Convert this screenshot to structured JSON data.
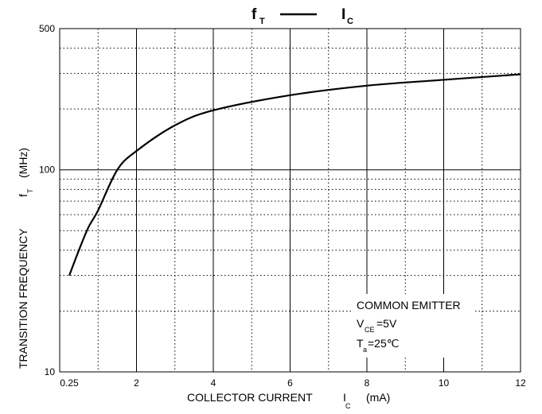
{
  "chart_data": {
    "type": "line",
    "title": {
      "symbol": "f",
      "symbol_sub": "T",
      "vs": "I",
      "vs_sub": "C"
    },
    "x_label": {
      "text": "COLLECTOR CURRENT",
      "symbol": "I",
      "symbol_sub": "C",
      "unit": "(mA)"
    },
    "y_label": {
      "text": "TRANSITION FREQUENCY",
      "symbol": "f",
      "symbol_sub": "T",
      "unit": "(MHz)"
    },
    "annotation": {
      "line1": "COMMON EMITTER",
      "v": "V",
      "v_sub": "CE",
      "v_val": "=5V",
      "t": "T",
      "t_sub": "a",
      "t_val": "=25℃"
    },
    "x": [
      0.25,
      0.5,
      0.75,
      1,
      1.5,
      2,
      3,
      4,
      6,
      8,
      10,
      12
    ],
    "series": [
      {
        "color": "#000000",
        "values": [
          30,
          40,
          52,
          63,
          100,
          124,
          166,
          197,
          234,
          261,
          279,
          297
        ]
      }
    ],
    "xlim": [
      0,
      12
    ],
    "xticks": [
      0.25,
      2,
      4,
      6,
      8,
      10,
      12
    ],
    "x_minor_grid": [
      1,
      3,
      5,
      7,
      9,
      11
    ],
    "ylim": [
      10,
      500
    ],
    "yticks": [
      10,
      100,
      500
    ],
    "y_minor_grid": [
      20,
      30,
      40,
      50,
      60,
      70,
      80,
      90,
      200,
      300,
      400
    ],
    "y_log": true,
    "grid": true
  }
}
